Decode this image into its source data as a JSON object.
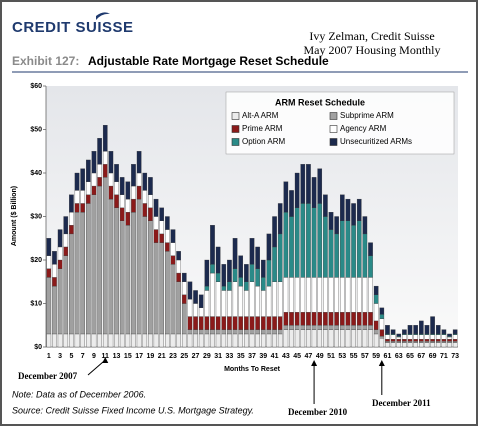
{
  "chart_data": {
    "type": "stacked_bar",
    "brand": "CREDIT SUISSE",
    "header": [
      "Ivy Zelman, Credit Suisse",
      "May 2007 Housing Monthly"
    ],
    "exhibit": "Exhibit 127:",
    "title": "Adjustable Rate Mortgage Reset Schedule",
    "legend_title": "ARM Reset Schedule",
    "ylabel": "Amount ($ Billion)",
    "xlabel": "Months To Reset",
    "note": "Note: Data as of December 2006.",
    "source": "Source: Credit Suisse Fixed Income U.S. Mortgage Strategy.",
    "annotations": [
      {
        "text": "December 2007",
        "month": 11
      },
      {
        "text": "December 2010",
        "month": 48
      },
      {
        "text": "December 2011",
        "month": 60
      }
    ],
    "categories": [
      1,
      null,
      3,
      null,
      5,
      null,
      7,
      null,
      9,
      null,
      11,
      null,
      13,
      null,
      15,
      null,
      17,
      null,
      19,
      null,
      21,
      null,
      23,
      null,
      25,
      null,
      27,
      null,
      29,
      null,
      31,
      null,
      33,
      null,
      35,
      null,
      37,
      null,
      39,
      null,
      41,
      null,
      43,
      null,
      45,
      null,
      47,
      null,
      49,
      null,
      51,
      null,
      53,
      null,
      55,
      null,
      57,
      null,
      59,
      null,
      61,
      null,
      63,
      null,
      65,
      null,
      67,
      null,
      69,
      null,
      71,
      null,
      73
    ],
    "ylim": [
      0,
      60
    ],
    "yticks": [
      {
        "value": 0,
        "label": "$0"
      },
      {
        "value": 10,
        "label": "$10"
      },
      {
        "value": 20,
        "label": "$20"
      },
      {
        "value": 30,
        "label": "$30"
      },
      {
        "value": 40,
        "label": "$40"
      },
      {
        "value": 50,
        "label": "$50"
      },
      {
        "value": 60,
        "label": "$60"
      }
    ],
    "series": [
      {
        "name": "Alt-A ARM",
        "color": "#ececec",
        "values": [
          3,
          3,
          3,
          3,
          3,
          3,
          3,
          3,
          3,
          3,
          3,
          3,
          3,
          3,
          3,
          3,
          3,
          3,
          3,
          3,
          3,
          3,
          3,
          3,
          3,
          3,
          3,
          3,
          3,
          3,
          3,
          3,
          3,
          3,
          3,
          3,
          3,
          3,
          3,
          3,
          3,
          3,
          4,
          4,
          4,
          4,
          4,
          4,
          4,
          4,
          4,
          4,
          4,
          4,
          4,
          4,
          4,
          4,
          3,
          2,
          1,
          1,
          1,
          1,
          1,
          1,
          1,
          1,
          1,
          1,
          1,
          1,
          1
        ]
      },
      {
        "name": "Subprime ARM",
        "color": "#a0a0a0",
        "values": [
          13,
          11,
          15,
          18,
          23,
          28,
          28,
          30,
          32,
          34,
          36,
          31,
          29,
          26,
          25,
          28,
          31,
          27,
          26,
          21,
          21,
          19,
          16,
          12,
          7,
          1,
          1,
          1,
          1,
          1,
          1,
          1,
          1,
          1,
          1,
          1,
          1,
          1,
          1,
          1,
          1,
          1,
          1,
          1,
          1,
          1,
          1,
          1,
          1,
          1,
          1,
          1,
          1,
          1,
          1,
          1,
          1,
          1,
          1,
          0.5,
          0.3,
          0.3,
          0.3,
          0.3,
          0.3,
          0.3,
          0.3,
          0.3,
          0.3,
          0.3,
          0.3,
          0.3,
          0.3
        ]
      },
      {
        "name": "Prime ARM",
        "color": "#8b1a1a",
        "values": [
          2,
          2,
          2,
          2,
          2,
          2,
          2,
          2,
          2,
          2,
          3,
          3,
          3,
          3,
          3,
          3,
          3,
          3,
          3,
          3,
          2,
          2,
          2,
          2,
          2,
          3,
          3,
          3,
          3,
          3,
          3,
          3,
          3,
          3,
          3,
          3,
          3,
          3,
          3,
          3,
          3,
          3,
          3,
          3,
          3,
          3,
          3,
          3,
          3,
          3,
          3,
          3,
          3,
          3,
          3,
          3,
          3,
          3,
          2,
          1.5,
          0.5,
          0.5,
          0.5,
          0.5,
          0.5,
          0.5,
          0.5,
          0.5,
          0.5,
          0.5,
          0.5,
          0.5,
          0.5
        ]
      },
      {
        "name": "Agency ARM",
        "color": "#ffffff",
        "values": [
          3,
          3,
          3,
          3,
          3,
          3,
          3,
          3,
          3,
          3,
          3,
          3,
          3,
          3,
          3,
          3,
          3,
          3,
          3,
          3,
          3,
          3,
          3,
          3,
          3,
          4,
          3,
          2,
          6,
          10,
          8,
          6,
          6,
          8,
          7,
          6,
          8,
          7,
          6,
          7,
          8,
          8,
          8,
          8,
          8,
          8,
          8,
          8,
          8,
          8,
          8,
          8,
          8,
          8,
          8,
          8,
          8,
          8,
          4,
          2.5,
          1,
          1,
          0.5,
          1,
          1,
          1,
          1,
          1,
          1,
          1,
          1,
          0.5,
          1
        ]
      },
      {
        "name": "Option ARM",
        "color": "#2a8a88",
        "values": [
          0,
          0,
          0,
          0,
          0,
          0,
          0,
          0,
          0,
          0,
          0,
          0,
          0,
          0,
          0,
          0,
          0,
          0,
          0,
          0,
          0,
          0,
          0,
          0,
          0,
          0,
          0,
          0,
          1,
          2,
          2,
          1,
          2,
          3,
          2,
          2,
          4,
          4,
          3,
          6,
          8,
          11,
          15,
          14,
          16,
          17,
          17,
          16,
          17,
          14,
          11,
          10,
          13,
          13,
          12,
          13,
          10,
          5,
          2,
          1,
          0.2,
          0.2,
          0.2,
          0.2,
          0.2,
          0.2,
          0.2,
          0.2,
          0.2,
          0.2,
          0.2,
          0.2,
          0.2
        ]
      },
      {
        "name": "Unsecuritized ARMs",
        "color": "#1c2a4e",
        "values": [
          4,
          3,
          4,
          4,
          4,
          4,
          5,
          5,
          5,
          6,
          6,
          5,
          4,
          4,
          4,
          5,
          5,
          4,
          4,
          4,
          3,
          3,
          3,
          2,
          2,
          4,
          3,
          3,
          6,
          9,
          6,
          5,
          5,
          7,
          5,
          4,
          6,
          5,
          4,
          6,
          7,
          7,
          7,
          6,
          8,
          9,
          9,
          7,
          8,
          5,
          4,
          4,
          6,
          5,
          5,
          5,
          4,
          3,
          2,
          1.5,
          2,
          1,
          0.5,
          1,
          2,
          2,
          3,
          2,
          4,
          2,
          1,
          0.5,
          1
        ]
      }
    ]
  }
}
